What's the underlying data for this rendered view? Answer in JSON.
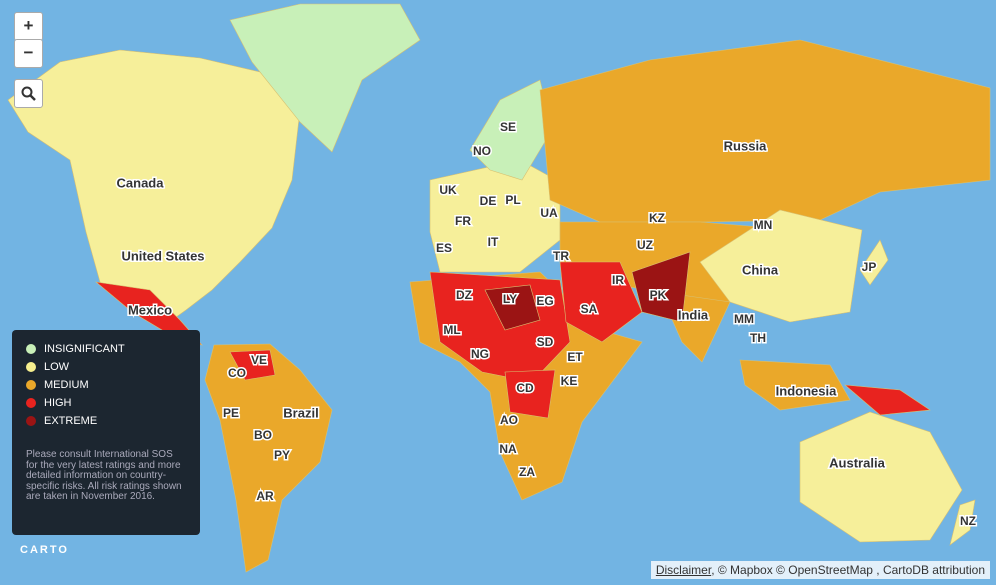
{
  "zoom_controls": {
    "zoom_in": "+",
    "zoom_out": "−"
  },
  "country_labels": [
    "Canada",
    "United States",
    "Mexico",
    "Russia",
    "China",
    "India",
    "Brazil",
    "Australia",
    "Indonesia",
    "SE",
    "NO",
    "UK",
    "DE",
    "PL",
    "FR",
    "UA",
    "IT",
    "ES",
    "TR",
    "KZ",
    "MN",
    "UZ",
    "IR",
    "JP",
    "DZ",
    "LY",
    "EG",
    "SA",
    "PK",
    "ML",
    "NG",
    "SD",
    "ET",
    "MM",
    "TH",
    "VE",
    "CO",
    "KE",
    "CD",
    "PE",
    "BO",
    "PY",
    "AO",
    "NA",
    "ZA",
    "AR",
    "NZ"
  ],
  "legend": {
    "items": [
      {
        "label": "INSIGNIFICANT",
        "color": "#c8f0b8"
      },
      {
        "label": "LOW",
        "color": "#f6ef8e"
      },
      {
        "label": "MEDIUM",
        "color": "#eaa82a"
      },
      {
        "label": "HIGH",
        "color": "#e8231f"
      },
      {
        "label": "EXTREME",
        "color": "#9b1414"
      }
    ],
    "note": "Please consult International SOS for the very latest ratings and more detailed information on country-specific risks. All risk ratings shown are taken in November 2016."
  },
  "logo": "CARTO",
  "attribution": {
    "link": "Disclaimer",
    "text": ", © Mapbox © OpenStreetMap , CartoDB attribution"
  }
}
